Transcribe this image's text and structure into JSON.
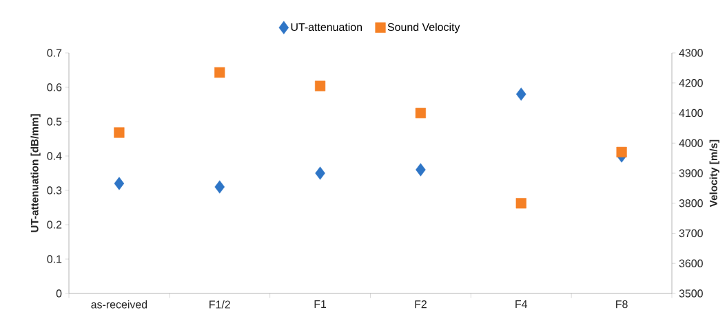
{
  "chart_data": {
    "type": "scatter",
    "categories": [
      "as-received",
      "F1/2",
      "F1",
      "F2",
      "F4",
      "F8"
    ],
    "ylabel": "UT-attenuation [dB/mm]",
    "y2label": "Velocity [m/s]",
    "ylim": [
      0,
      0.7
    ],
    "yticks": [
      0,
      0.1,
      0.2,
      0.3,
      0.4,
      0.5,
      0.6,
      0.7
    ],
    "y2lim": [
      3500,
      4300
    ],
    "y2ticks": [
      3500,
      3600,
      3700,
      3800,
      3900,
      4000,
      4100,
      4200,
      4300
    ],
    "legend": "top",
    "grid": false,
    "series": [
      {
        "name": "UT-attenuation",
        "color": "#2e75c6",
        "marker": "diamond",
        "values": [
          0.32,
          0.31,
          0.35,
          0.36,
          0.58,
          0.4
        ]
      },
      {
        "name": "Sound Velocity",
        "color": "#f58025",
        "marker": "square",
        "axis": "y2",
        "values": [
          4035,
          4235,
          4190,
          4100,
          3800,
          3970
        ]
      }
    ]
  }
}
